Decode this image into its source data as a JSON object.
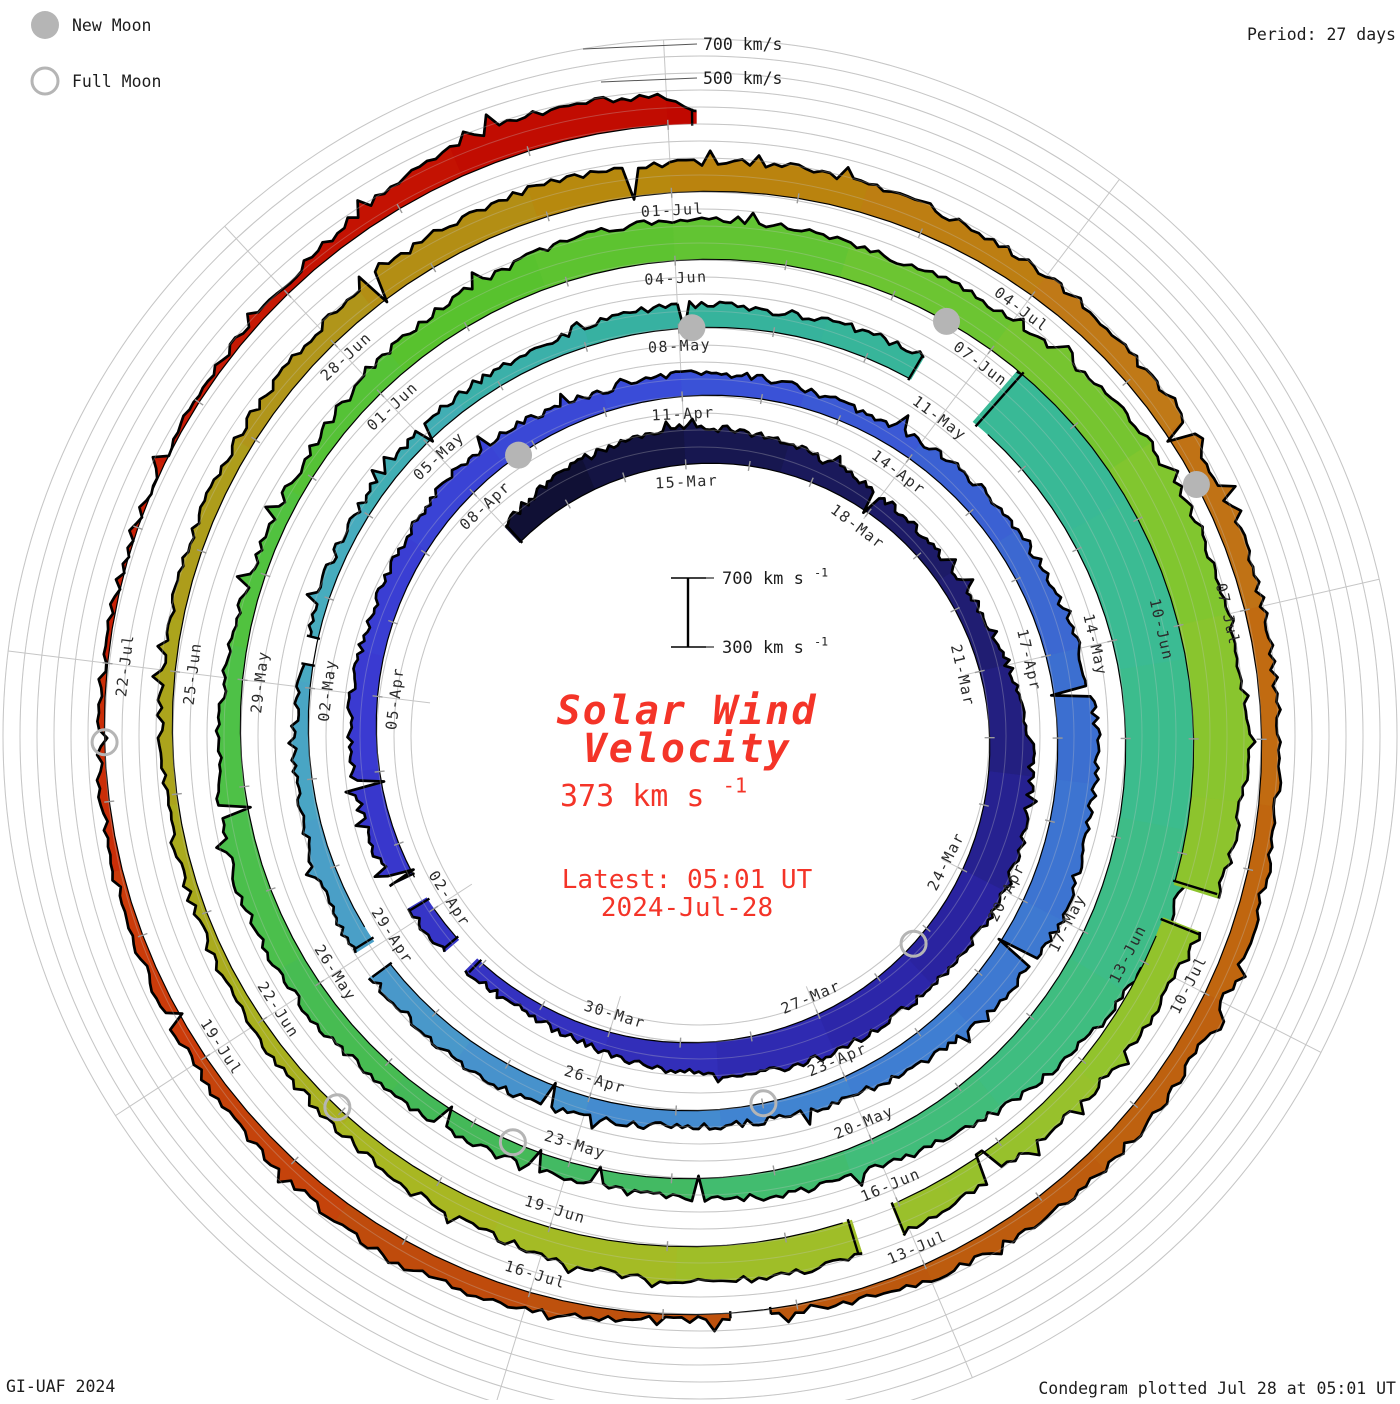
{
  "header": {
    "period_label": "Period: 27 days",
    "legend": [
      {
        "type": "new",
        "label": "New Moon"
      },
      {
        "type": "full",
        "label": "Full Moon"
      }
    ]
  },
  "axis_labels": {
    "outer_700": "700 km/s",
    "outer_500": "500 km/s",
    "scalebar_top": "700 km s",
    "scalebar_bottom": "300 km s",
    "exponent": "-1"
  },
  "center": {
    "title_line1": "Solar Wind",
    "title_line2": "Velocity",
    "value": "373 km s",
    "value_exp": "-1",
    "latest1": "Latest: 05:01 UT",
    "latest2": "2024-Jul-28"
  },
  "footer": {
    "left": "GI-UAF 2024",
    "right": "Condegram plotted Jul 28 at 05:01 UT"
  },
  "chart_data": {
    "type": "spiral-polar-condegram",
    "title": "Solar Wind Velocity",
    "period_days": 27,
    "baseline_kms": 300,
    "reference_circles_kms": [
      500,
      700
    ],
    "scalebar_range_kms": [
      300,
      700
    ],
    "latest_velocity_kms": 373,
    "latest_time": "2024-Jul-28 05:01 UT",
    "time_origin": "2024-Mar-12",
    "t_start": 0,
    "t_end": 138.2,
    "ring_labels": [
      {
        "t": 3,
        "label": "15-Mar"
      },
      {
        "t": 6,
        "label": "18-Mar"
      },
      {
        "t": 9,
        "label": "21-Mar"
      },
      {
        "t": 12,
        "label": "24-Mar"
      },
      {
        "t": 15,
        "label": "27-Mar"
      },
      {
        "t": 18,
        "label": "30-Mar"
      },
      {
        "t": 21,
        "label": "02-Apr"
      },
      {
        "t": 24,
        "label": "05-Apr"
      },
      {
        "t": 27,
        "label": "08-Apr"
      },
      {
        "t": 30,
        "label": "11-Apr"
      },
      {
        "t": 33,
        "label": "14-Apr"
      },
      {
        "t": 36,
        "label": "17-Apr"
      },
      {
        "t": 39,
        "label": "20-Apr"
      },
      {
        "t": 42,
        "label": "23-Apr"
      },
      {
        "t": 45,
        "label": "26-Apr"
      },
      {
        "t": 48,
        "label": "29-Apr"
      },
      {
        "t": 51,
        "label": "02-May"
      },
      {
        "t": 54,
        "label": "05-May"
      },
      {
        "t": 57,
        "label": "08-May"
      },
      {
        "t": 60,
        "label": "11-May"
      },
      {
        "t": 63,
        "label": "14-May"
      },
      {
        "t": 66,
        "label": "17-May"
      },
      {
        "t": 69,
        "label": "20-May"
      },
      {
        "t": 72,
        "label": "23-May"
      },
      {
        "t": 75,
        "label": "26-May"
      },
      {
        "t": 78,
        "label": "29-May"
      },
      {
        "t": 81,
        "label": "01-Jun"
      },
      {
        "t": 84,
        "label": "04-Jun"
      },
      {
        "t": 87,
        "label": "07-Jun"
      },
      {
        "t": 90,
        "label": "10-Jun"
      },
      {
        "t": 93,
        "label": "13-Jun"
      },
      {
        "t": 96,
        "label": "16-Jun"
      },
      {
        "t": 99,
        "label": "19-Jun"
      },
      {
        "t": 102,
        "label": "22-Jun"
      },
      {
        "t": 105,
        "label": "25-Jun"
      },
      {
        "t": 108,
        "label": "28-Jun"
      },
      {
        "t": 111,
        "label": "01-Jul"
      },
      {
        "t": 114,
        "label": "04-Jul"
      },
      {
        "t": 117,
        "label": "07-Jul"
      },
      {
        "t": 120,
        "label": "10-Jul"
      },
      {
        "t": 123,
        "label": "13-Jul"
      },
      {
        "t": 126,
        "label": "16-Jul"
      },
      {
        "t": 129,
        "label": "19-Jul"
      },
      {
        "t": 132,
        "label": "22-Jul"
      }
    ],
    "moons": [
      {
        "phase": "full",
        "t": 13.29,
        "date": "2024-Mar-25"
      },
      {
        "phase": "new",
        "t": 27.76,
        "date": "2024-Apr-08"
      },
      {
        "phase": "full",
        "t": 42.99,
        "date": "2024-Apr-23"
      },
      {
        "phase": "new",
        "t": 57.14,
        "date": "2024-May-08"
      },
      {
        "phase": "full",
        "t": 72.58,
        "date": "2024-May-23"
      },
      {
        "phase": "new",
        "t": 86.53,
        "date": "2024-Jun-06"
      },
      {
        "phase": "full",
        "t": 101.05,
        "date": "2024-Jun-21"
      },
      {
        "phase": "new",
        "t": 115.96,
        "date": "2024-Jul-05"
      },
      {
        "phase": "full",
        "t": 131.43,
        "date": "2024-Jul-21"
      }
    ],
    "gaps": [
      [
        20.1,
        20.45
      ],
      [
        21.2,
        21.5
      ],
      [
        47.8,
        48.05
      ],
      [
        51.3,
        51.5
      ],
      [
        59.55,
        60.3
      ],
      [
        92.3,
        92.55
      ],
      [
        96.1,
        96.4
      ],
      [
        124.25,
        124.45
      ]
    ],
    "series": [
      [
        0,
        430
      ],
      [
        1,
        470
      ],
      [
        2,
        505
      ],
      [
        3,
        520
      ],
      [
        4,
        490
      ],
      [
        5,
        450
      ],
      [
        6,
        420
      ],
      [
        7,
        400
      ],
      [
        8,
        425
      ],
      [
        9,
        470
      ],
      [
        10,
        540
      ],
      [
        11,
        560
      ],
      [
        12,
        580
      ],
      [
        13,
        560
      ],
      [
        14,
        540
      ],
      [
        15,
        545
      ],
      [
        16,
        520
      ],
      [
        17,
        470
      ],
      [
        18,
        420
      ],
      [
        19,
        380
      ],
      [
        20,
        390
      ],
      [
        21,
        420
      ],
      [
        22,
        450
      ],
      [
        23,
        460
      ],
      [
        24,
        450
      ],
      [
        25,
        432
      ],
      [
        26,
        440
      ],
      [
        27,
        468
      ],
      [
        28,
        450
      ],
      [
        29,
        420
      ],
      [
        30,
        440
      ],
      [
        31,
        420
      ],
      [
        32,
        400
      ],
      [
        33,
        420
      ],
      [
        34,
        450
      ],
      [
        35,
        470
      ],
      [
        36,
        495
      ],
      [
        37,
        535
      ],
      [
        38,
        515
      ],
      [
        39,
        555
      ],
      [
        40,
        505
      ],
      [
        41,
        465
      ],
      [
        42,
        420
      ],
      [
        43,
        400
      ],
      [
        44,
        390
      ],
      [
        45,
        420
      ],
      [
        46,
        440
      ],
      [
        47,
        430
      ],
      [
        48,
        430
      ],
      [
        49,
        410
      ],
      [
        50,
        390
      ],
      [
        51,
        370
      ],
      [
        52,
        365
      ],
      [
        53,
        372
      ],
      [
        54,
        385
      ],
      [
        55,
        395
      ],
      [
        56,
        410
      ],
      [
        57,
        440
      ],
      [
        58,
        420
      ],
      [
        59,
        445
      ],
      [
        59.5,
        450
      ],
      [
        60.4,
        730
      ],
      [
        61,
        880
      ],
      [
        62,
        950
      ],
      [
        63,
        885
      ],
      [
        64,
        815
      ],
      [
        65,
        765
      ],
      [
        66,
        720
      ],
      [
        67,
        625
      ],
      [
        68,
        540
      ],
      [
        69,
        465
      ],
      [
        70,
        448
      ],
      [
        71,
        405
      ],
      [
        72,
        392
      ],
      [
        73,
        412
      ],
      [
        74,
        432
      ],
      [
        75,
        462
      ],
      [
        76,
        482
      ],
      [
        77,
        452
      ],
      [
        78,
        402
      ],
      [
        79,
        382
      ],
      [
        80,
        392
      ],
      [
        81,
        432
      ],
      [
        82,
        482
      ],
      [
        83,
        522
      ],
      [
        84,
        545
      ],
      [
        85,
        522
      ],
      [
        86,
        502
      ],
      [
        87,
        522
      ],
      [
        88,
        562
      ],
      [
        89,
        605
      ],
      [
        90,
        598
      ],
      [
        91,
        618
      ],
      [
        92,
        578
      ],
      [
        93,
        502
      ],
      [
        94,
        468
      ],
      [
        95,
        440
      ],
      [
        96,
        478
      ],
      [
        97,
        518
      ],
      [
        98,
        498
      ],
      [
        99,
        468
      ],
      [
        100,
        425
      ],
      [
        101,
        392
      ],
      [
        102,
        372
      ],
      [
        103,
        365
      ],
      [
        104,
        372
      ],
      [
        105,
        376
      ],
      [
        106,
        382
      ],
      [
        107,
        396
      ],
      [
        108,
        422
      ],
      [
        109,
        465
      ],
      [
        110,
        492
      ],
      [
        111,
        470
      ],
      [
        112,
        482
      ],
      [
        113,
        462
      ],
      [
        114,
        440
      ],
      [
        115,
        430
      ],
      [
        116,
        420
      ],
      [
        117,
        408
      ],
      [
        118,
        400
      ],
      [
        119,
        412
      ],
      [
        120,
        420
      ],
      [
        121,
        432
      ],
      [
        122,
        420
      ],
      [
        123,
        400
      ],
      [
        124,
        332
      ],
      [
        125,
        328
      ],
      [
        126,
        395
      ],
      [
        127,
        442
      ],
      [
        128,
        405
      ],
      [
        129,
        382
      ],
      [
        130,
        360
      ],
      [
        131,
        340
      ],
      [
        132,
        325
      ],
      [
        133,
        315
      ],
      [
        134,
        322
      ],
      [
        135,
        345
      ],
      [
        136,
        430
      ],
      [
        137,
        505
      ],
      [
        138,
        470
      ],
      [
        138.2,
        373
      ]
    ],
    "colormap": [
      [
        0,
        "#0e0e2e"
      ],
      [
        3,
        "#16164a"
      ],
      [
        9,
        "#211e78"
      ],
      [
        13,
        "#2a23a2"
      ],
      [
        18,
        "#3330bd"
      ],
      [
        24,
        "#3a3ad2"
      ],
      [
        30,
        "#3a4ed8"
      ],
      [
        36,
        "#3c6cd0"
      ],
      [
        42,
        "#3f80d2"
      ],
      [
        48,
        "#4b9cc9"
      ],
      [
        52,
        "#48acc0"
      ],
      [
        57,
        "#35b29e"
      ],
      [
        63,
        "#3bbc92"
      ],
      [
        69,
        "#41bd78"
      ],
      [
        73,
        "#44b958"
      ],
      [
        78,
        "#4fc245"
      ],
      [
        82,
        "#58c22e"
      ],
      [
        85,
        "#63c433"
      ],
      [
        90,
        "#86c62e"
      ],
      [
        96,
        "#9bc02b"
      ],
      [
        100,
        "#a8b822"
      ],
      [
        104,
        "#aaa81c"
      ],
      [
        108,
        "#b0941a"
      ],
      [
        111,
        "#b8860b"
      ],
      [
        115,
        "#c07818"
      ],
      [
        118,
        "#c16a10"
      ],
      [
        123,
        "#bc5a0e"
      ],
      [
        127,
        "#bf4a0c"
      ],
      [
        130,
        "#cc3a0a"
      ],
      [
        133,
        "#c81e05"
      ],
      [
        138.2,
        "#c00800"
      ]
    ],
    "colors": {
      "grid": "#c6c6c6",
      "outline": "#000000",
      "label_text": "#2b2b2b",
      "accent_red": "#f43428",
      "moon_gray": "#b5b5b5",
      "corner_text": "#1c1c1c"
    }
  }
}
